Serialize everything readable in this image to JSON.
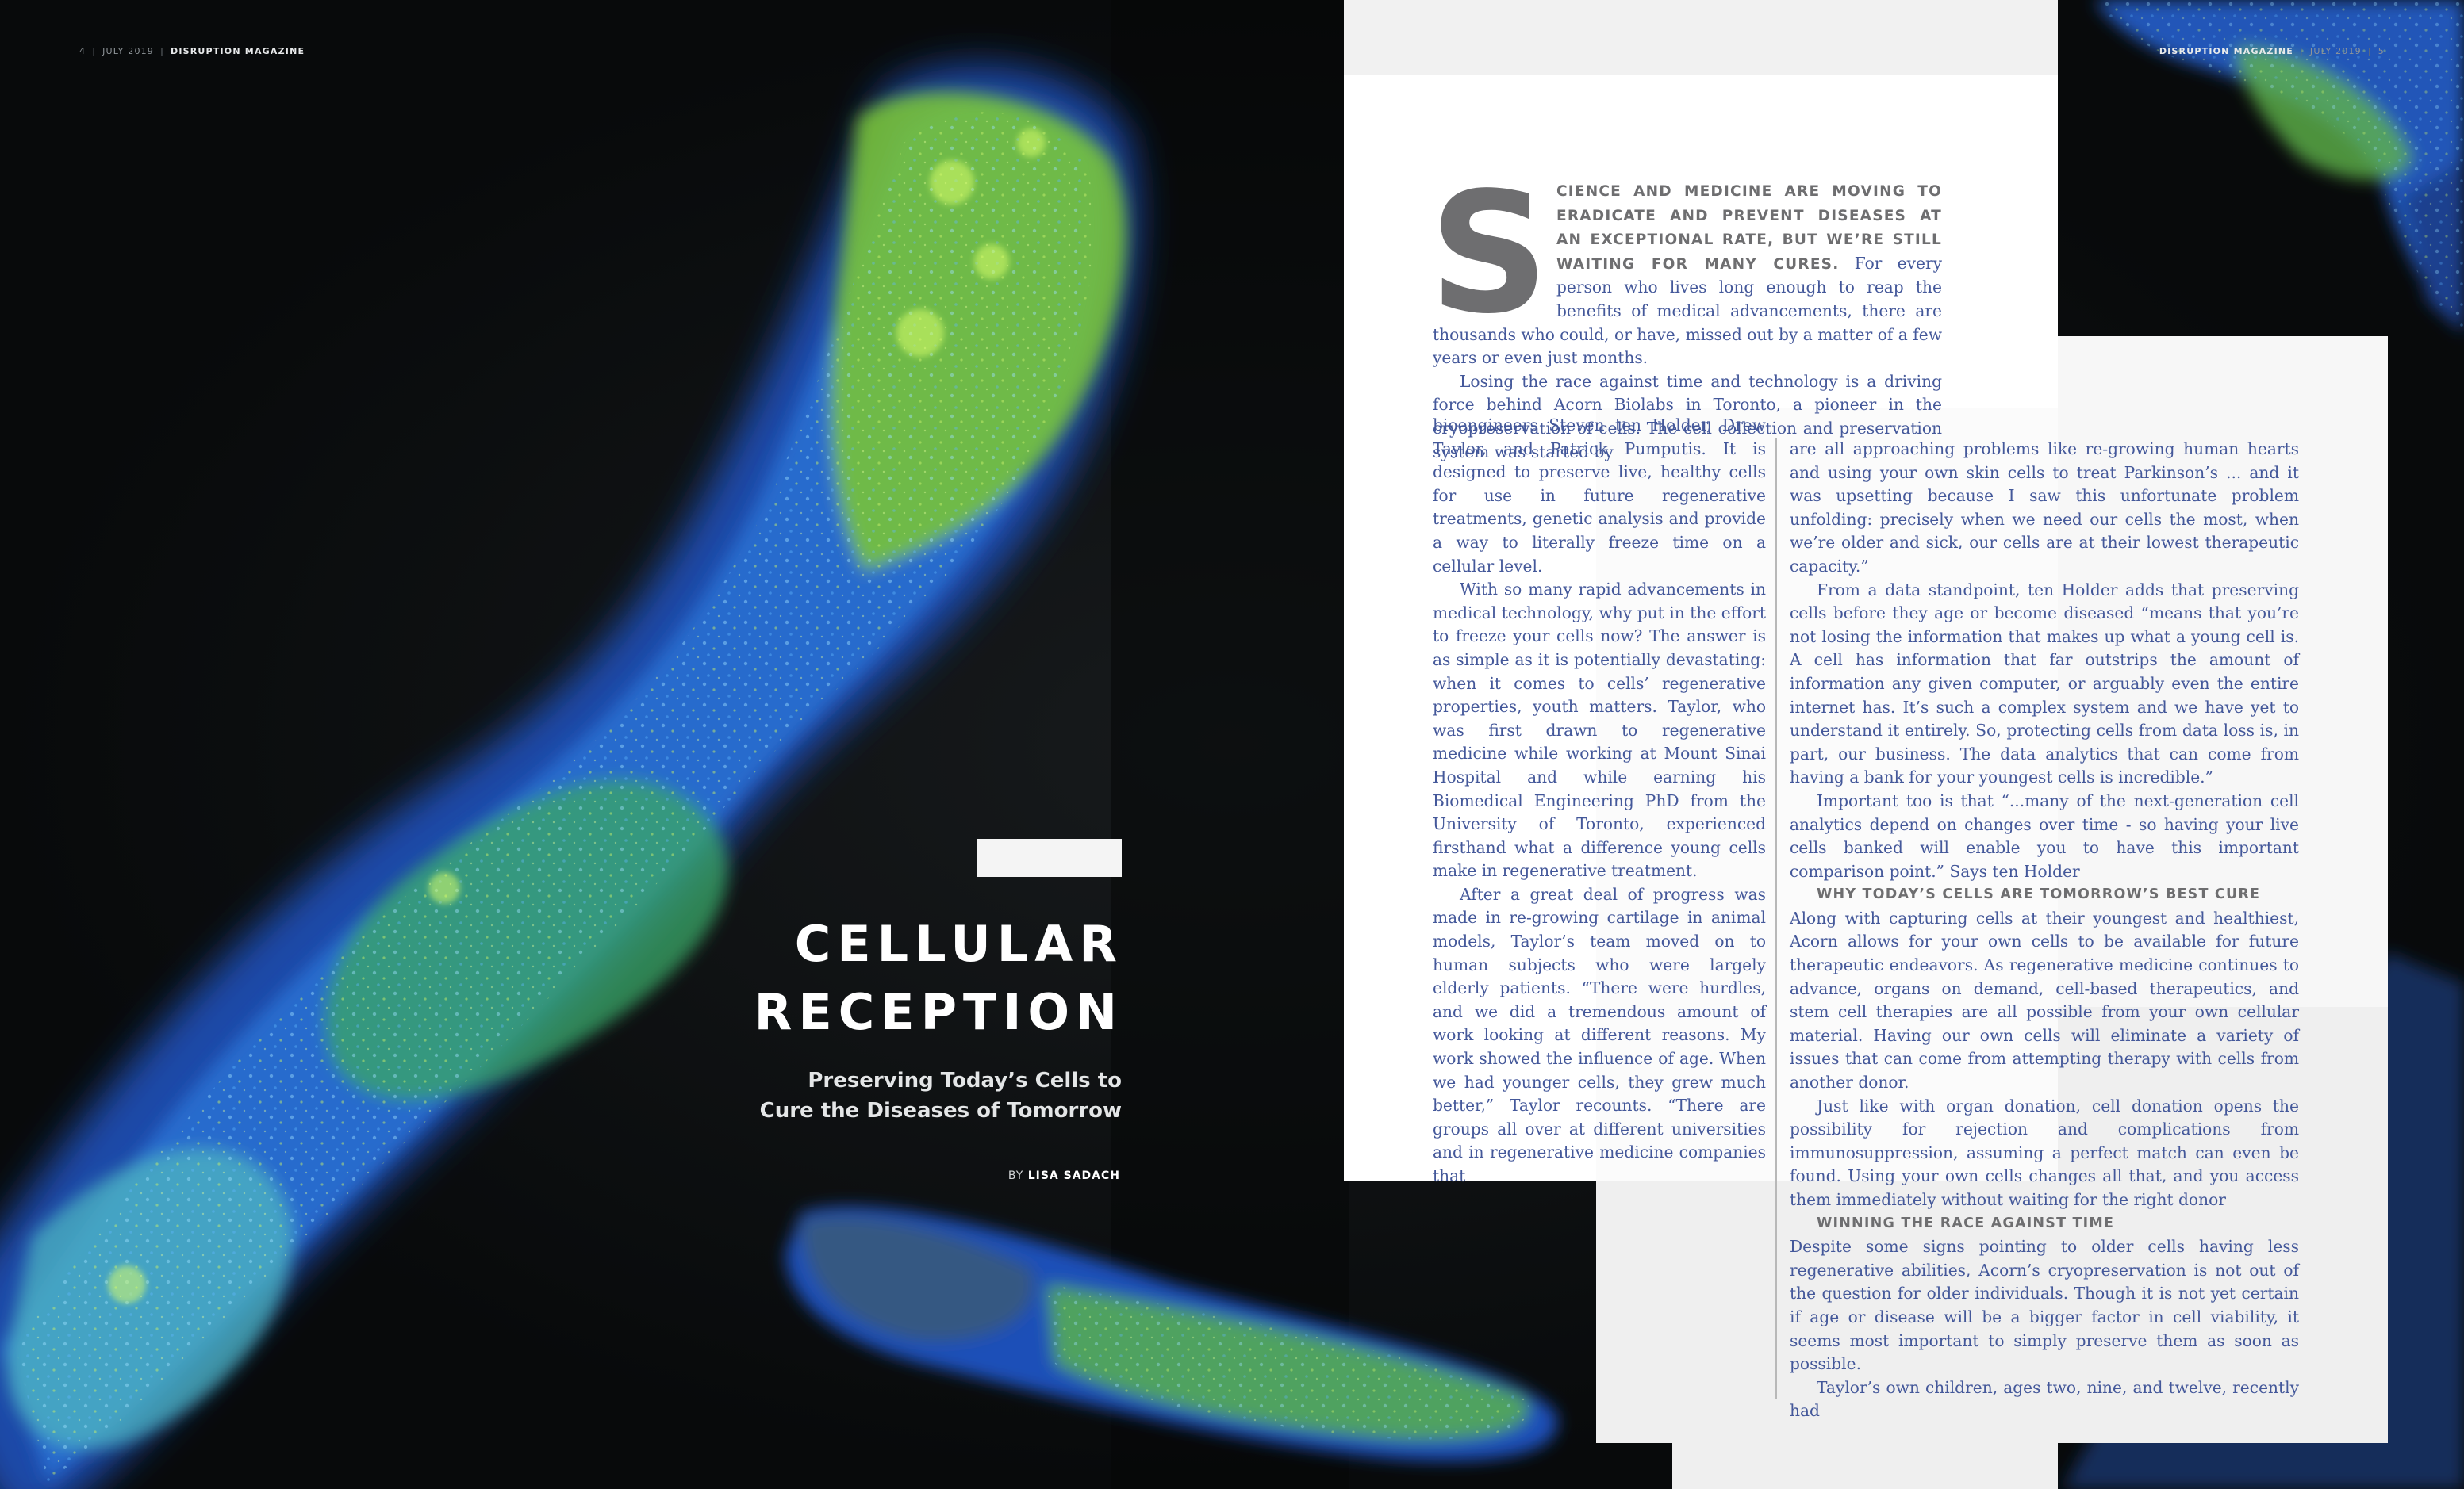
{
  "folio_left": {
    "page": "4",
    "date": "JULY 2019",
    "magazine": "DISRUPTION MAGAZINE"
  },
  "folio_right": {
    "magazine": "DISRUPTION MAGAZINE",
    "date": "JULY 2019",
    "page": "5"
  },
  "title": {
    "line1": "CELLULAR",
    "line2": "RECEPTION"
  },
  "subtitle": {
    "line1": "Preserving Today’s Cells to",
    "line2": "Cure the Diseases of Tomorrow"
  },
  "byline": {
    "prefix": "BY",
    "author": "LISA SADACH"
  },
  "colors": {
    "body_text": "#44589a",
    "heading_gray": "#6e6e70",
    "cell_green": "#b8e234",
    "cell_blue": "#2e5fd1"
  },
  "article": {
    "dropcap": "S",
    "lead_caps": "CIENCE AND MEDICINE ARE MOVING TO ERADICATE AND PREVENT DISEASES AT AN EXCEPTIONAL RATE, BUT WE’RE STILL WAITING FOR MANY CURES.",
    "lead_rest": "For every person who lives long enough to reap the benefits of medical advancements, there are thousands who could, or have, missed out by a matter of a few years or even just months.",
    "p2": "Losing the race against time and technology is a driving force behind Acorn Biolabs in Toronto, a pioneer in the cryopreservation of cells. The cell collection and preservation system was started by",
    "p2_cont": "bioengineers Steven ten Holder, Drew Taylor, and Patrick Pumputis. It is designed to preserve live, healthy cells for use in future regenerative treatments, genetic analysis and provide a way to literally freeze time on a cellular level.",
    "p3": "With so many rapid advancements in medical technology, why put in the effort to freeze your cells now? The answer is as simple as it is potentially devastating: when it comes to cells’ regenerative properties, youth matters. Taylor, who was first drawn to regenerative medicine while working at Mount Sinai Hospital and while earning his Biomedical Engineering PhD from the University of Toronto, experienced firsthand what a difference young cells make in regenerative treatment.",
    "p4": "After a great deal of progress was made in re-growing cartilage in animal models, Taylor’s team moved on to human subjects who were largely elderly patients. “There were hurdles, and we did a tremendous amount of work looking at different reasons. My work showed the influence of age. When we had younger cells, they grew much better,” Taylor recounts. “There are groups all over at different universities and in regenerative medicine companies that",
    "p4_cont": "are all approaching problems like re-growing human hearts and using your own skin cells to treat Parkinson’s ... and it was upsetting because I saw this unfortunate problem unfolding: precisely when we need our cells the most, when we’re older and sick, our cells are at their lowest therapeutic capacity.”",
    "p5": "From a data standpoint, ten Holder adds that preserving cells before they age or become diseased “means that you’re not losing the information that makes up what a young cell is. A cell has information that far outstrips the amount of information any given computer, or arguably even the entire internet has. It’s such a complex system and we have yet to understand it entirely. So, protecting cells from data loss is, in part, our business. The data analytics that can come from having a bank for your youngest cells is incredible.”",
    "p6": "Important too is that “...many of the next-generation cell analytics depend on changes over time - so having your live cells banked will enable you to have this important comparison point.” Says ten Holder",
    "subhead1": "WHY TODAY’S CELLS ARE TOMORROW’S BEST CURE",
    "p7": "Along with capturing cells at their youngest and healthiest, Acorn allows for your own cells to be available for future therapeutic endeavors. As regenerative medicine continues to advance, organs on demand, cell-based therapeutics, and stem cell therapies are all possible from your own cellular material. Having our own cells will eliminate a variety of issues that can come from attempting therapy with cells from another donor.",
    "p8": "Just like with organ donation, cell donation opens the possibility for rejection and complications from immunosuppression, assuming a perfect match can even be found. Using your own cells changes all that, and you access them immediately without waiting for the right donor",
    "subhead2": "WINNING THE RACE AGAINST TIME",
    "p9": "Despite some signs pointing to older cells having less regenerative abilities, Acorn’s cryopreservation is not out of the question for older individuals. Though it is not yet certain if age or disease will be a bigger factor in cell viability, it seems most important to simply preserve them as soon as possible.",
    "p10": "Taylor’s own children, ages two, nine, and twelve, recently had"
  }
}
